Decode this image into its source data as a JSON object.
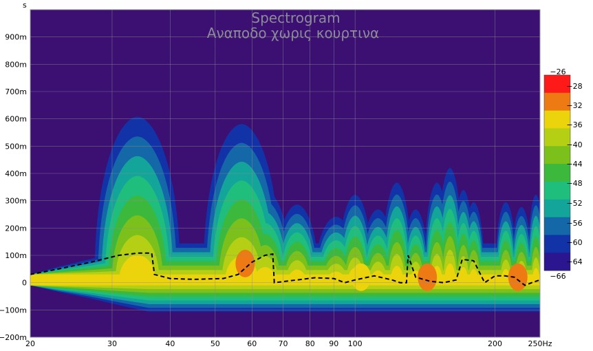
{
  "chart_data": {
    "type": "heatmap",
    "title": "Spectrogram",
    "subtitle": "Αναποδο χωρις κουρτινα",
    "ylabel": "s",
    "xlabel_unit": "Hz",
    "x_scale": "log",
    "xlim": [
      20,
      250
    ],
    "ylim": [
      -0.2,
      1.0
    ],
    "grid": true,
    "background_color": "#3c0f73",
    "x_ticks": [
      {
        "value": 20,
        "label": "20"
      },
      {
        "value": 30,
        "label": "30"
      },
      {
        "value": 40,
        "label": "40"
      },
      {
        "value": 50,
        "label": "50"
      },
      {
        "value": 60,
        "label": "60"
      },
      {
        "value": 70,
        "label": "70"
      },
      {
        "value": 80,
        "label": "80"
      },
      {
        "value": 90,
        "label": "90"
      },
      {
        "value": 100,
        "label": "100"
      },
      {
        "value": 200,
        "label": "200"
      },
      {
        "value": 250,
        "label": "250Hz"
      }
    ],
    "y_ticks": [
      {
        "value": 0.9,
        "label": "900m"
      },
      {
        "value": 0.8,
        "label": "800m"
      },
      {
        "value": 0.7,
        "label": "700m"
      },
      {
        "value": 0.6,
        "label": "600m"
      },
      {
        "value": 0.5,
        "label": "500m"
      },
      {
        "value": 0.4,
        "label": "400m"
      },
      {
        "value": 0.3,
        "label": "300m"
      },
      {
        "value": 0.2,
        "label": "200m"
      },
      {
        "value": 0.1,
        "label": "100m"
      },
      {
        "value": 0.0,
        "label": "0"
      },
      {
        "value": -0.1,
        "label": "−100m"
      },
      {
        "value": -0.2,
        "label": "−200m"
      }
    ],
    "colorbar": {
      "labels": [
        "−26",
        "−28",
        "−32",
        "−36",
        "−40",
        "−44",
        "−48",
        "−52",
        "−56",
        "−60",
        "−64",
        "−66"
      ],
      "levels": [
        {
          "from": -28,
          "to": -26,
          "color": "#ff1a1a"
        },
        {
          "from": -32,
          "to": -28,
          "color": "#ee7a14"
        },
        {
          "from": -36,
          "to": -32,
          "color": "#ecd40c"
        },
        {
          "from": -40,
          "to": -36,
          "color": "#b5cf14"
        },
        {
          "from": -44,
          "to": -40,
          "color": "#7cc01c"
        },
        {
          "from": -48,
          "to": -44,
          "color": "#3cb83c"
        },
        {
          "from": -52,
          "to": -48,
          "color": "#1fbe7c"
        },
        {
          "from": -56,
          "to": -52,
          "color": "#14a59a"
        },
        {
          "from": -60,
          "to": -56,
          "color": "#1468a8"
        },
        {
          "from": -64,
          "to": -60,
          "color": "#1232a8"
        },
        {
          "from": -66,
          "to": -64,
          "color": "#2c1690"
        }
      ]
    },
    "peaks": [
      {
        "freq": 34,
        "time": 0.68,
        "spread": 0.1
      },
      {
        "freq": 57,
        "time": 0.65,
        "spread": 0.09
      },
      {
        "freq": 64,
        "time": 0.38,
        "spread": 0.06
      },
      {
        "freq": 75,
        "time": 0.32,
        "spread": 0.05
      },
      {
        "freq": 91,
        "time": 0.27,
        "spread": 0.05
      },
      {
        "freq": 100,
        "time": 0.36,
        "spread": 0.04
      },
      {
        "freq": 112,
        "time": 0.3,
        "spread": 0.04
      },
      {
        "freq": 123,
        "time": 0.41,
        "spread": 0.035
      },
      {
        "freq": 135,
        "time": 0.3,
        "spread": 0.03
      },
      {
        "freq": 150,
        "time": 0.41,
        "spread": 0.03
      },
      {
        "freq": 160,
        "time": 0.47,
        "spread": 0.03
      },
      {
        "freq": 171,
        "time": 0.38,
        "spread": 0.025
      },
      {
        "freq": 180,
        "time": 0.33,
        "spread": 0.025
      },
      {
        "freq": 211,
        "time": 0.33,
        "spread": 0.025
      },
      {
        "freq": 228,
        "time": 0.31,
        "spread": 0.025
      },
      {
        "freq": 245,
        "time": 0.36,
        "spread": 0.02
      }
    ],
    "hotspots": [
      {
        "freq": 58,
        "time": 0.07,
        "level": -29
      },
      {
        "freq": 103,
        "time": 0.02,
        "level": -33
      },
      {
        "freq": 143,
        "time": 0.02,
        "level": -30
      },
      {
        "freq": 224,
        "time": 0.02,
        "level": -31
      }
    ],
    "series": [
      {
        "style": "dashed",
        "color": "#000000",
        "x": [
          20,
          23,
          27,
          31,
          34,
          36.5,
          37,
          40,
          45,
          52,
          56,
          60,
          64,
          66.5,
          67,
          75,
          82,
          90,
          95,
          100,
          110,
          120,
          125,
          129,
          130,
          135,
          145,
          155,
          160,
          165,
          170,
          180,
          190,
          200,
          210,
          220,
          232,
          240,
          250
        ],
        "y": [
          0.03,
          0.05,
          0.075,
          0.1,
          0.108,
          0.108,
          0.03,
          0.015,
          0.012,
          0.015,
          0.03,
          0.075,
          0.1,
          0.105,
          0.0,
          0.01,
          0.018,
          0.015,
          0.0,
          0.01,
          0.025,
          0.01,
          0.0,
          0.0,
          0.1,
          0.02,
          0.005,
          0.0,
          0.005,
          0.01,
          0.085,
          0.08,
          0.0,
          0.025,
          0.025,
          0.02,
          -0.01,
          0.0,
          0.01
        ]
      }
    ]
  }
}
